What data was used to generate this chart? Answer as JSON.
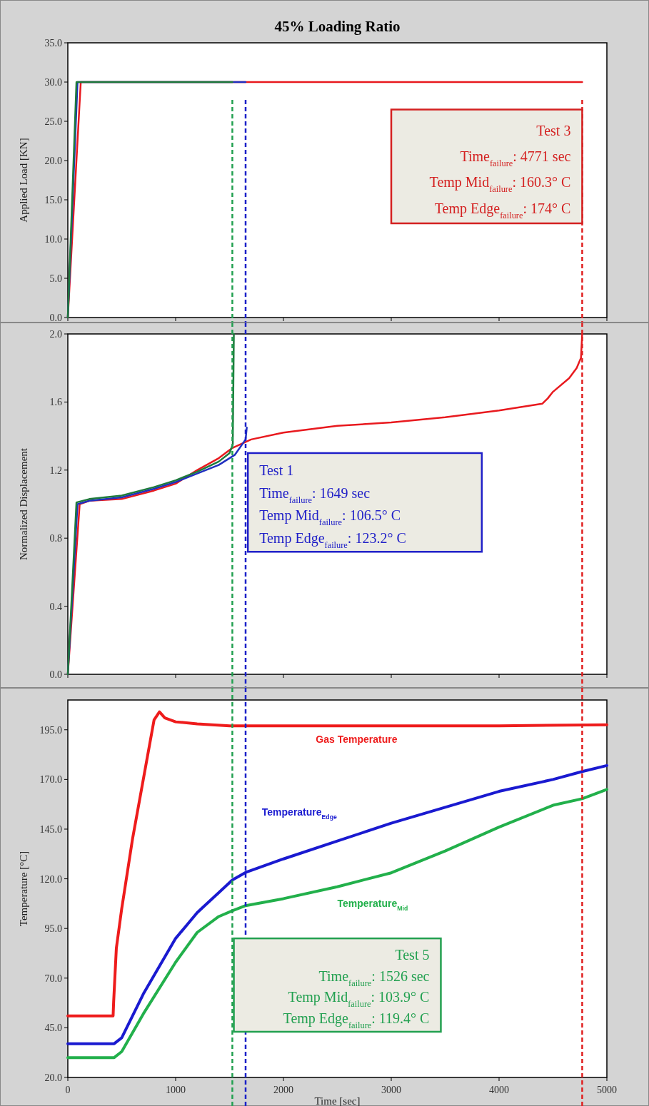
{
  "chart_data": [
    {
      "type": "line",
      "title": "45% Loading Ratio",
      "ylabel": "Applied Load [KN]",
      "xlim": [
        0,
        5000
      ],
      "xticks": [
        0,
        1000,
        2000,
        3000,
        4000,
        5000
      ],
      "tick_labels": "y",
      "ylim": [
        0,
        35
      ],
      "yticks": [
        {
          "value": 0,
          "label": "0.0"
        },
        {
          "value": 5,
          "label": "5.0"
        },
        {
          "value": 10,
          "label": "10.0"
        },
        {
          "value": 15,
          "label": "15.0"
        },
        {
          "value": 20,
          "label": "20.0"
        },
        {
          "value": 25,
          "label": "25.0"
        },
        {
          "value": 30,
          "label": "30.0"
        },
        {
          "value": 35,
          "label": "35.0"
        }
      ],
      "line_style": "solid",
      "series": [
        {
          "color": "#e8191e",
          "x": [
            0,
            120,
            4771
          ],
          "values": [
            0,
            30,
            30
          ]
        },
        {
          "color": "#2030c0",
          "x": [
            0,
            90,
            1649
          ],
          "values": [
            0,
            30,
            30
          ]
        },
        {
          "color": "#1e7a3c",
          "x": [
            0,
            80,
            1526
          ],
          "values": [
            0,
            30,
            30
          ]
        }
      ],
      "ref_lines": [
        {
          "axis": "x",
          "value": 1526,
          "color": "#22a050",
          "line_style": "dashed"
        },
        {
          "axis": "x",
          "value": 1649,
          "color": "#1a20c8",
          "line_style": "dashed"
        },
        {
          "axis": "x",
          "value": 4771,
          "color": "#e02020",
          "line_style": "dashed"
        }
      ],
      "annotations": [
        "Test 3",
        "Time$_{failure}$: 4771 sec",
        "Temp Mid$_{failure}$: 160.3° C",
        "Temp Edge$_{failure}$: 174° C"
      ]
    },
    {
      "type": "line",
      "ylabel": "Normalized Displacement",
      "xlim": [
        0,
        5000
      ],
      "xticks": [
        0,
        1000,
        2000,
        3000,
        4000,
        5000
      ],
      "tick_labels": "y",
      "ylim": [
        0,
        2
      ],
      "yticks": [
        {
          "value": 0,
          "label": "0.0"
        },
        {
          "value": 0.4,
          "label": "0.4"
        },
        {
          "value": 0.8,
          "label": "0.8"
        },
        {
          "value": 1.2,
          "label": "1.2"
        },
        {
          "value": 1.6,
          "label": "1.6"
        },
        {
          "value": 2,
          "label": "2.0"
        }
      ],
      "line_style": "solid",
      "series": [
        {
          "color": "#e8191e",
          "x": [
            0,
            110,
            200,
            500,
            800,
            1000,
            1200,
            1400,
            1526,
            1700,
            2000,
            2500,
            3000,
            3500,
            4000,
            4400,
            4450,
            4500,
            4650,
            4720,
            4760,
            4771
          ],
          "values": [
            0,
            1.0,
            1.02,
            1.03,
            1.08,
            1.12,
            1.2,
            1.27,
            1.33,
            1.38,
            1.42,
            1.46,
            1.48,
            1.51,
            1.55,
            1.59,
            1.62,
            1.66,
            1.74,
            1.8,
            1.86,
            2.0
          ]
        },
        {
          "color": "#2030c0",
          "x": [
            0,
            90,
            200,
            500,
            800,
            1000,
            1200,
            1400,
            1550,
            1649,
            1660
          ],
          "values": [
            0,
            1.0,
            1.02,
            1.04,
            1.09,
            1.13,
            1.18,
            1.23,
            1.29,
            1.38,
            1.45
          ]
        },
        {
          "color": "#1e7a3c",
          "x": [
            0,
            80,
            200,
            500,
            800,
            1000,
            1200,
            1400,
            1500,
            1530,
            1540
          ],
          "values": [
            0,
            1.01,
            1.03,
            1.05,
            1.1,
            1.14,
            1.19,
            1.25,
            1.3,
            1.35,
            2.0
          ]
        }
      ],
      "ref_lines": [
        {
          "axis": "x",
          "value": 1526,
          "color": "#22a050",
          "line_style": "dashed"
        },
        {
          "axis": "x",
          "value": 1649,
          "color": "#1a20c8",
          "line_style": "dashed"
        },
        {
          "axis": "x",
          "value": 4771,
          "color": "#e02020",
          "line_style": "dashed"
        }
      ],
      "annotations": [
        "Test 1",
        "Time$_{failure}$: 1649 sec",
        "Temp Mid$_{failure}$: 106.5° C",
        "Temp Edge$_{failure}$: 123.2° C"
      ]
    },
    {
      "type": "line",
      "xlabel": "Time [sec]",
      "ylabel": "Temperature [°C]",
      "xlim": [
        0,
        5000
      ],
      "xticks": [
        0,
        1000,
        2000,
        3000,
        4000,
        5000
      ],
      "ylim": [
        20,
        210
      ],
      "yticks": [
        {
          "value": 20,
          "label": "20.0"
        },
        {
          "value": 45,
          "label": "45.0"
        },
        {
          "value": 70,
          "label": "70.0"
        },
        {
          "value": 95,
          "label": "95.0"
        },
        {
          "value": 120,
          "label": "120.0"
        },
        {
          "value": 145,
          "label": "145.0"
        },
        {
          "value": 170,
          "label": "170.0"
        },
        {
          "value": 195,
          "label": "195.0"
        }
      ],
      "line_style": "solid",
      "series": [
        {
          "name": "Gas Temperature",
          "color": "#ee1c1c",
          "x": [
            0,
            420,
            425,
            450,
            500,
            600,
            700,
            800,
            850,
            900,
            1000,
            1200,
            1500,
            2000,
            3000,
            4000,
            5000
          ],
          "values": [
            51,
            51,
            58,
            85,
            105,
            140,
            170,
            200,
            204,
            201,
            199,
            198,
            197,
            197,
            197,
            197,
            197.5
          ]
        },
        {
          "name": "Temperature$_{Edge}$",
          "color": "#1a1ad0",
          "x": [
            0,
            430,
            500,
            700,
            1000,
            1200,
            1400,
            1526,
            1649,
            2000,
            2500,
            3000,
            3500,
            4000,
            4500,
            4771,
            5000
          ],
          "values": [
            37,
            37,
            40,
            62,
            90,
            103,
            113,
            119.4,
            123.2,
            130,
            139,
            148,
            156,
            164,
            170,
            174,
            177
          ]
        },
        {
          "name": "Temperature$_{Mid}$",
          "color": "#22b04b",
          "x": [
            0,
            430,
            500,
            700,
            1000,
            1200,
            1400,
            1526,
            1649,
            2000,
            2500,
            3000,
            3500,
            4000,
            4500,
            4771,
            5000
          ],
          "values": [
            30,
            30,
            33,
            52,
            78,
            93,
            101,
            103.9,
            106.5,
            110,
            116,
            123,
            134,
            146,
            157,
            160.3,
            165
          ]
        }
      ],
      "ref_lines": [
        {
          "axis": "x",
          "value": 1526,
          "color": "#22a050",
          "line_style": "dashed"
        },
        {
          "axis": "x",
          "value": 1649,
          "color": "#1a20c8",
          "line_style": "dashed"
        },
        {
          "axis": "x",
          "value": 4771,
          "color": "#e02020",
          "line_style": "dashed"
        }
      ],
      "annotations": [
        "Test 5",
        "Time$_{failure}$: 1526 sec",
        "Temp Mid$_{failure}$: 103.9° C",
        "Temp Edge$_{failure}$: 119.4° C"
      ]
    }
  ]
}
